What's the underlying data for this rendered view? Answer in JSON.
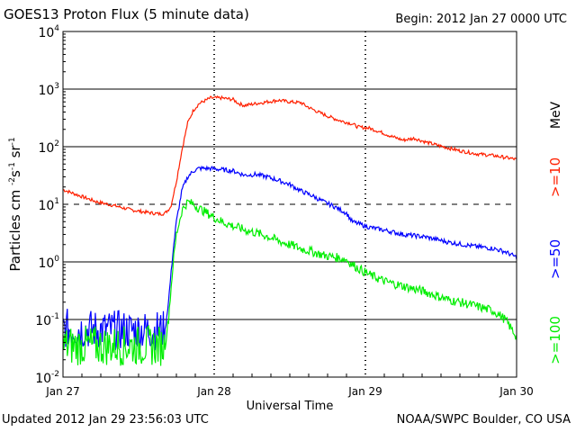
{
  "header": {
    "title": "GOES13 Proton Flux (5 minute data)",
    "begin": "Begin: 2012 Jan 27 0000 UTC"
  },
  "footer": {
    "updated": "Updated 2012 Jan 29 23:56:03 UTC",
    "credit": "NOAA/SWPC Boulder, CO USA"
  },
  "chart_data": {
    "type": "line",
    "xlabel": "Universal Time",
    "ylabel_main": "Particles cm",
    "ylabel_exps": [
      "-2",
      "-1",
      "-1"
    ],
    "ylabel_units": [
      "s",
      "sr"
    ],
    "units_label": "MeV",
    "x_ticks": [
      "Jan 27",
      "Jan 28",
      "Jan 29",
      "Jan 30"
    ],
    "x_range_days": [
      0,
      3
    ],
    "y_scale": "log",
    "y_ticks": [
      {
        "base": "10",
        "exp": "4"
      },
      {
        "base": "10",
        "exp": "3"
      },
      {
        "base": "10",
        "exp": "2"
      },
      {
        "base": "10",
        "exp": "1"
      },
      {
        "base": "10",
        "exp": "0"
      },
      {
        "base": "10",
        "exp": "-1"
      },
      {
        "base": "10",
        "exp": "-2"
      }
    ],
    "ylim": [
      0.01,
      10000
    ],
    "dashed_levels": [
      10
    ],
    "solid_levels": [
      1000,
      100,
      1,
      0.1
    ],
    "series": [
      {
        "name": ">=10",
        "color": "#ff2000",
        "points": [
          [
            0,
            18
          ],
          [
            0.15,
            14
          ],
          [
            0.3,
            11
          ],
          [
            0.45,
            9.5
          ],
          [
            0.6,
            8
          ],
          [
            0.75,
            7.2
          ],
          [
            0.85,
            6.8
          ],
          [
            0.9,
            7
          ],
          [
            0.95,
            9
          ],
          [
            1.0,
            25
          ],
          [
            1.05,
            90
          ],
          [
            1.1,
            260
          ],
          [
            1.15,
            430
          ],
          [
            1.2,
            560
          ],
          [
            1.3,
            700
          ],
          [
            1.4,
            700
          ],
          [
            1.5,
            660
          ],
          [
            1.55,
            560
          ],
          [
            1.6,
            520
          ],
          [
            1.7,
            560
          ],
          [
            1.8,
            600
          ],
          [
            1.9,
            640
          ],
          [
            2.0,
            600
          ],
          [
            2.1,
            580
          ],
          [
            2.15,
            500
          ],
          [
            2.25,
            400
          ],
          [
            2.35,
            330
          ],
          [
            2.45,
            280
          ],
          [
            2.55,
            250
          ],
          [
            2.6,
            220
          ],
          [
            2.7,
            210
          ],
          [
            2.8,
            180
          ],
          [
            2.9,
            150
          ],
          [
            3.0,
            130
          ],
          [
            3.1,
            140
          ],
          [
            3.2,
            120
          ],
          [
            3.35,
            100
          ],
          [
            3.5,
            85
          ],
          [
            3.65,
            75
          ],
          [
            3.8,
            70
          ],
          [
            3.9,
            65
          ],
          [
            4.0,
            60
          ]
        ],
        "noise": 0.03
      },
      {
        "name": ">=50",
        "color": "#0000ff",
        "points": [
          [
            0,
            0.07
          ],
          [
            0.5,
            0.065
          ],
          [
            0.9,
            0.065
          ],
          [
            0.93,
            0.2
          ],
          [
            0.97,
            1.5
          ],
          [
            1.0,
            5
          ],
          [
            1.05,
            18
          ],
          [
            1.1,
            30
          ],
          [
            1.15,
            38
          ],
          [
            1.2,
            42
          ],
          [
            1.3,
            42
          ],
          [
            1.4,
            40
          ],
          [
            1.5,
            38
          ],
          [
            1.6,
            32
          ],
          [
            1.7,
            33
          ],
          [
            1.8,
            30
          ],
          [
            1.9,
            26
          ],
          [
            2.0,
            22
          ],
          [
            2.1,
            17
          ],
          [
            2.2,
            14
          ],
          [
            2.3,
            11
          ],
          [
            2.4,
            9
          ],
          [
            2.5,
            7
          ],
          [
            2.55,
            5
          ],
          [
            2.7,
            4
          ],
          [
            2.85,
            3.5
          ],
          [
            3.0,
            3.0
          ],
          [
            3.2,
            2.7
          ],
          [
            3.4,
            2.2
          ],
          [
            3.6,
            1.9
          ],
          [
            3.8,
            1.7
          ],
          [
            3.9,
            1.5
          ],
          [
            4.0,
            1.2
          ]
        ],
        "noise": 0.04
      },
      {
        "name": ">=100",
        "color": "#00ee00",
        "points": [
          [
            0,
            0.035
          ],
          [
            0.5,
            0.035
          ],
          [
            0.9,
            0.035
          ],
          [
            0.93,
            0.1
          ],
          [
            0.97,
            0.9
          ],
          [
            1.0,
            3
          ],
          [
            1.05,
            8
          ],
          [
            1.1,
            11
          ],
          [
            1.15,
            10
          ],
          [
            1.2,
            8.5
          ],
          [
            1.3,
            6.5
          ],
          [
            1.4,
            5
          ],
          [
            1.5,
            4.2
          ],
          [
            1.6,
            3.6
          ],
          [
            1.7,
            3.2
          ],
          [
            1.8,
            2.8
          ],
          [
            1.9,
            2.3
          ],
          [
            2.0,
            2.0
          ],
          [
            2.1,
            1.7
          ],
          [
            2.2,
            1.5
          ],
          [
            2.3,
            1.3
          ],
          [
            2.4,
            1.2
          ],
          [
            2.5,
            1.1
          ],
          [
            2.55,
            0.9
          ],
          [
            2.7,
            0.6
          ],
          [
            2.85,
            0.45
          ],
          [
            3.0,
            0.38
          ],
          [
            3.2,
            0.3
          ],
          [
            3.4,
            0.22
          ],
          [
            3.6,
            0.18
          ],
          [
            3.8,
            0.14
          ],
          [
            3.9,
            0.1
          ],
          [
            4.0,
            0.05
          ]
        ],
        "noise": 0.08
      }
    ]
  }
}
